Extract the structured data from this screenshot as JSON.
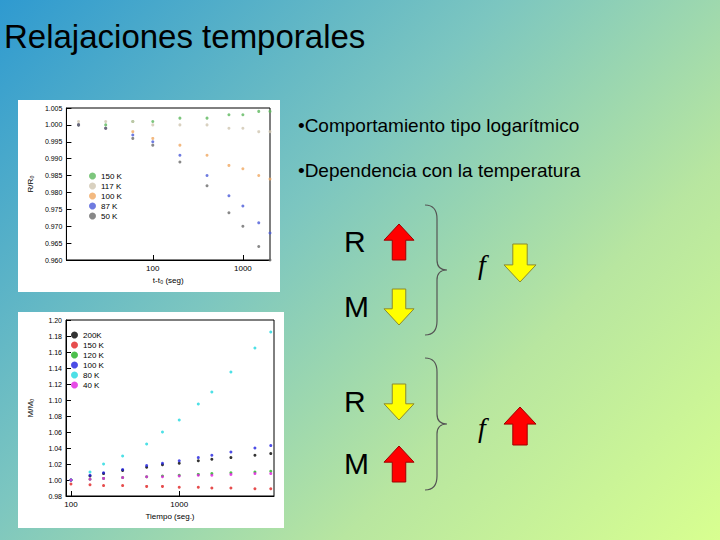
{
  "slide": {
    "title": "Relajaciones temporales",
    "bullets": [
      "•Comportamiento tipo logarítmico",
      "•Dependencia con la temperatura"
    ],
    "diagram": [
      {
        "inputs": [
          {
            "label": "R",
            "arrow": "up"
          },
          {
            "label": "M",
            "arrow": "down"
          }
        ],
        "output": {
          "label": "f",
          "arrow": "down"
        }
      },
      {
        "inputs": [
          {
            "label": "R",
            "arrow": "down"
          },
          {
            "label": "M",
            "arrow": "up"
          }
        ],
        "output": {
          "label": "f",
          "arrow": "up"
        }
      }
    ]
  },
  "chart_data": [
    {
      "type": "scatter",
      "x_label": "t-t₀ (seg)",
      "y_label": "R/R₀",
      "log": "x",
      "grid": false,
      "legend": "left",
      "marker": "circle",
      "xlim": [
        11,
        2000
      ],
      "xticks": [
        100,
        1000
      ],
      "ylim": [
        0.96,
        1.005
      ],
      "yticks": [
        {
          "value": 0.96,
          "label": "0.960"
        },
        0.965,
        {
          "value": 0.97,
          "label": "0.970"
        },
        0.975,
        {
          "value": 0.98,
          "label": "0.980"
        },
        0.985,
        {
          "value": 0.99,
          "label": "0.990"
        },
        0.995,
        {
          "value": 1,
          "label": "1.000"
        },
        1.005
      ],
      "x": [
        15,
        30,
        60,
        100,
        200,
        400,
        700,
        1000,
        1500,
        2000
      ],
      "series": [
        {
          "name": "150 K",
          "color": "#5cb85c",
          "values": [
            1.0,
            1.0,
            1.001,
            1.001,
            1.002,
            1.002,
            1.003,
            1.003,
            1.004,
            1.004
          ]
        },
        {
          "name": "117 K",
          "color": "#cfc6b0",
          "values": [
            1.001,
            1.001,
            1.001,
            1.0,
            1.0,
            1.0,
            0.999,
            0.999,
            0.998,
            0.998
          ]
        },
        {
          "name": "100 K",
          "color": "#f0a860",
          "values": [
            1.0,
            0.999,
            0.998,
            0.996,
            0.994,
            0.991,
            0.988,
            0.987,
            0.985,
            0.984
          ]
        },
        {
          "name": "87 K",
          "color": "#4a5ad8",
          "values": [
            1.0,
            0.999,
            0.997,
            0.995,
            0.991,
            0.985,
            0.979,
            0.976,
            0.971,
            0.968
          ]
        },
        {
          "name": "50 K",
          "color": "#6a6a6a",
          "values": [
            1.0,
            0.999,
            0.996,
            0.994,
            0.989,
            0.982,
            0.974,
            0.97,
            0.964,
            0.96
          ]
        }
      ]
    },
    {
      "type": "scatter",
      "x_label": "Tiempo (seg.)",
      "y_label": "M/M₀",
      "log": "x",
      "grid": false,
      "legend": "upper left",
      "marker": "circle",
      "xlim": [
        90,
        7500
      ],
      "xticks": [
        100,
        1000
      ],
      "ylim": [
        0.98,
        1.2
      ],
      "yticks": [
        0.98,
        {
          "value": 1,
          "label": "1.00"
        },
        1.02,
        1.04,
        1.06,
        1.08,
        {
          "value": 1.1,
          "label": "1.10"
        },
        1.12,
        1.14,
        1.16,
        1.18,
        {
          "value": 1.2,
          "label": "1.20"
        }
      ],
      "x": [
        100,
        150,
        200,
        300,
        500,
        700,
        1000,
        1500,
        2000,
        3000,
        5000,
        7000
      ],
      "series": [
        {
          "name": "200K",
          "color": "#000000",
          "values": [
            1.0,
            1.005,
            1.008,
            1.012,
            1.016,
            1.019,
            1.021,
            1.024,
            1.026,
            1.028,
            1.031,
            1.033
          ]
        },
        {
          "name": "150 K",
          "color": "#e02020",
          "values": [
            0.995,
            0.994,
            0.993,
            0.993,
            0.992,
            0.992,
            0.991,
            0.991,
            0.99,
            0.99,
            0.989,
            0.989
          ]
        },
        {
          "name": "120 K",
          "color": "#20b020",
          "values": [
            1.0,
            1.001,
            1.002,
            1.003,
            1.004,
            1.005,
            1.006,
            1.007,
            1.008,
            1.009,
            1.01,
            1.011
          ]
        },
        {
          "name": "100 K",
          "color": "#2020e0",
          "values": [
            1.0,
            1.006,
            1.009,
            1.013,
            1.018,
            1.021,
            1.024,
            1.028,
            1.031,
            1.035,
            1.04,
            1.043
          ]
        },
        {
          "name": "80 K",
          "color": "#20d8e0",
          "values": [
            1.0,
            1.01,
            1.02,
            1.03,
            1.045,
            1.06,
            1.075,
            1.095,
            1.11,
            1.135,
            1.165,
            1.185
          ]
        },
        {
          "name": "40 K",
          "color": "#e020e0",
          "values": [
            1.0,
            1.001,
            1.002,
            1.003,
            1.004,
            1.004,
            1.005,
            1.006,
            1.006,
            1.007,
            1.008,
            1.008
          ]
        }
      ]
    }
  ]
}
